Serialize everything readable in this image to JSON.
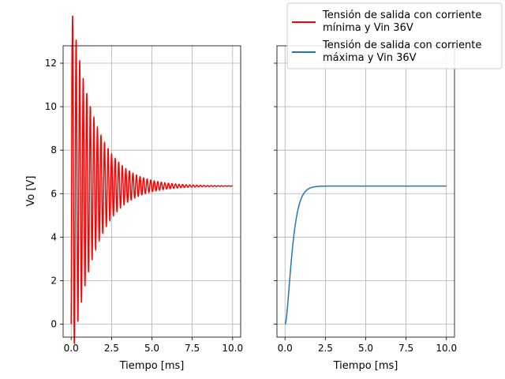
{
  "chart_data": {
    "type": "line",
    "y_label": "Vo [V]",
    "y_ticks": [
      "0",
      "2",
      "4",
      "6",
      "8",
      "10",
      "12"
    ],
    "y_tick_values": [
      0,
      2,
      4,
      6,
      8,
      10,
      12
    ],
    "ylim": [
      -0.6,
      12.8
    ],
    "grid": true,
    "panels": [
      {
        "x_label": "Tiempo [ms]",
        "xlim": [
          -0.5,
          10.5
        ],
        "x_ticks": [
          "0.0",
          "2.5",
          "5.0",
          "7.5",
          "10.0"
        ],
        "x_tick_values": [
          0,
          2.5,
          5,
          7.5,
          10
        ],
        "series": [
          {
            "name": "Tensión de salida con corriente mínima y Vin 36V",
            "color": "#ff0000",
            "model": "underdamped",
            "x_range": [
              0,
              10
            ],
            "final_value": 6.35,
            "initial_value": 0,
            "first_peak": 12.3,
            "oscillation_period_ms": 0.22,
            "decay_time_constant_ms": 1.45
          }
        ]
      },
      {
        "x_label": "Tiempo [ms]",
        "xlim": [
          -0.5,
          10.5
        ],
        "x_ticks": [
          "0.0",
          "2.5",
          "5.0",
          "7.5",
          "10.0"
        ],
        "x_tick_values": [
          0,
          2.5,
          5,
          7.5,
          10
        ],
        "series": [
          {
            "name": "Tensión de salida con corriente máxima y Vin 36V",
            "color": "#1f77b4",
            "model": "overdamped",
            "x_range": [
              0,
              10
            ],
            "final_value": 6.35,
            "initial_value": 0,
            "time_constant_ms": 0.25
          }
        ]
      }
    ],
    "legend": {
      "position": "upper-right",
      "entries": [
        {
          "line1": "Tensión de salida con corriente",
          "line2": "mínima y Vin 36V",
          "color": "#ff0000"
        },
        {
          "line1": "Tensión de salida con corriente",
          "line2": "máxima y Vin 36V",
          "color": "#1f77b4"
        }
      ]
    }
  }
}
